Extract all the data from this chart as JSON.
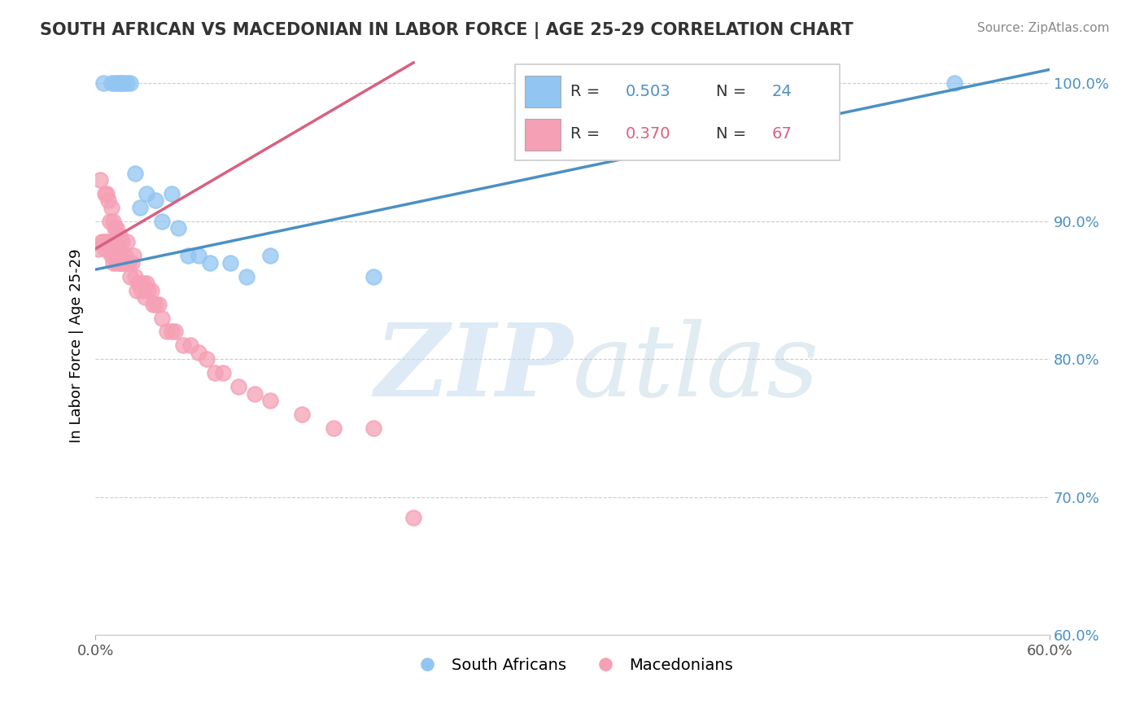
{
  "title": "SOUTH AFRICAN VS MACEDONIAN IN LABOR FORCE | AGE 25-29 CORRELATION CHART",
  "source": "Source: ZipAtlas.com",
  "ylabel": "In Labor Force | Age 25-29",
  "xlim": [
    0.0,
    0.6
  ],
  "ylim": [
    0.6,
    1.02
  ],
  "xtick_positions": [
    0.0,
    0.6
  ],
  "xticklabels": [
    "0.0%",
    "60.0%"
  ],
  "ytick_positions": [
    1.0,
    0.9,
    0.8,
    0.7,
    0.6
  ],
  "ytick_labels": [
    "100.0%",
    "90.0%",
    "80.0%",
    "70.0%",
    "60.0%"
  ],
  "blue_color": "#92C5F2",
  "pink_color": "#F5A0B5",
  "blue_line_color": "#4A90C4",
  "pink_line_color": "#D96080",
  "south_africans_label": "South Africans",
  "macedonians_label": "Macedonians",
  "watermark_zip": "ZIP",
  "watermark_atlas": "atlas",
  "blue_scatter_x": [
    0.005,
    0.01,
    0.012,
    0.014,
    0.015,
    0.017,
    0.018,
    0.02,
    0.022,
    0.025,
    0.028,
    0.032,
    0.038,
    0.042,
    0.048,
    0.052,
    0.058,
    0.065,
    0.072,
    0.085,
    0.095,
    0.11,
    0.175,
    0.54
  ],
  "blue_scatter_y": [
    1.0,
    1.0,
    1.0,
    1.0,
    1.0,
    1.0,
    1.0,
    1.0,
    1.0,
    0.935,
    0.91,
    0.92,
    0.915,
    0.9,
    0.92,
    0.895,
    0.875,
    0.875,
    0.87,
    0.87,
    0.86,
    0.875,
    0.86,
    1.0
  ],
  "pink_scatter_x": [
    0.002,
    0.003,
    0.004,
    0.005,
    0.006,
    0.006,
    0.007,
    0.007,
    0.008,
    0.008,
    0.009,
    0.009,
    0.01,
    0.01,
    0.011,
    0.011,
    0.012,
    0.012,
    0.013,
    0.013,
    0.014,
    0.014,
    0.015,
    0.015,
    0.015,
    0.016,
    0.016,
    0.017,
    0.017,
    0.018,
    0.019,
    0.02,
    0.02,
    0.021,
    0.022,
    0.023,
    0.024,
    0.025,
    0.026,
    0.027,
    0.028,
    0.029,
    0.03,
    0.031,
    0.032,
    0.033,
    0.035,
    0.036,
    0.038,
    0.04,
    0.042,
    0.045,
    0.048,
    0.05,
    0.055,
    0.06,
    0.065,
    0.07,
    0.075,
    0.08,
    0.09,
    0.1,
    0.11,
    0.13,
    0.15,
    0.175,
    0.2
  ],
  "pink_scatter_y": [
    0.88,
    0.93,
    0.885,
    0.885,
    0.88,
    0.92,
    0.885,
    0.92,
    0.885,
    0.915,
    0.885,
    0.9,
    0.875,
    0.91,
    0.87,
    0.9,
    0.875,
    0.895,
    0.87,
    0.895,
    0.875,
    0.885,
    0.87,
    0.89,
    0.87,
    0.88,
    0.87,
    0.87,
    0.885,
    0.87,
    0.875,
    0.87,
    0.885,
    0.87,
    0.86,
    0.87,
    0.875,
    0.86,
    0.85,
    0.855,
    0.855,
    0.85,
    0.855,
    0.845,
    0.855,
    0.85,
    0.85,
    0.84,
    0.84,
    0.84,
    0.83,
    0.82,
    0.82,
    0.82,
    0.81,
    0.81,
    0.805,
    0.8,
    0.79,
    0.79,
    0.78,
    0.775,
    0.77,
    0.76,
    0.75,
    0.75,
    0.685
  ],
  "blue_line_x": [
    0.0,
    0.6
  ],
  "blue_line_y": [
    0.865,
    1.01
  ],
  "pink_line_x": [
    0.0,
    0.2
  ],
  "pink_line_y": [
    0.88,
    1.015
  ]
}
